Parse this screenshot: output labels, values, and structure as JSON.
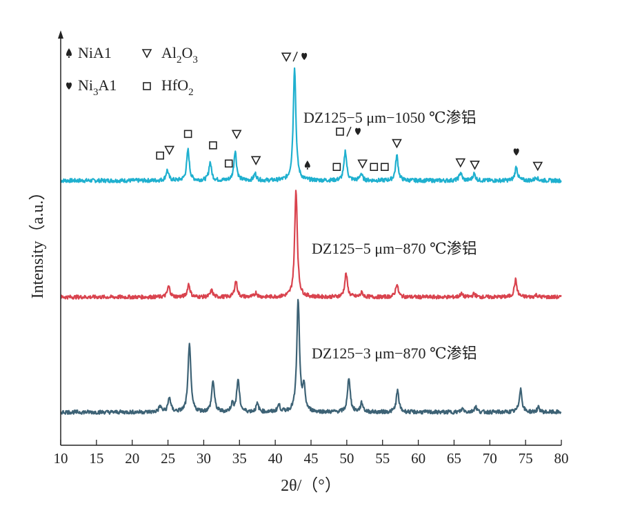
{
  "chart_data": {
    "type": "line",
    "xlabel": "2θ/（°）",
    "ylabel": "Intensity（a.u.）",
    "xlim": [
      10,
      80
    ],
    "x_ticks": [
      10,
      15,
      20,
      25,
      30,
      35,
      40,
      45,
      50,
      55,
      60,
      65,
      70,
      75,
      80
    ],
    "y_ticks": [],
    "grid": false,
    "legend_position": "top-left",
    "legend": [
      {
        "symbol": "spade",
        "text": "NiA1",
        "label": "NiA1"
      },
      {
        "symbol": "heart",
        "text": "Ni3A1",
        "label": "Ni",
        "sub": "3",
        "tail": "A1"
      },
      {
        "symbol": "triangle",
        "text": "Al2O3",
        "label": "Al",
        "sub1": "2",
        "mid": "O",
        "sub2": "3"
      },
      {
        "symbol": "square",
        "text": "HfO2",
        "label": "HfO",
        "sub": "2"
      }
    ],
    "series": [
      {
        "name": "DZ125−5 μm−1050 ℃渗铝",
        "color": "#1fb0cf",
        "baseline": 0.0,
        "peaks": [
          [
            24.9,
            0.09
          ],
          [
            27.8,
            0.27
          ],
          [
            30.9,
            0.16
          ],
          [
            34.4,
            0.26
          ],
          [
            37.2,
            0.06
          ],
          [
            42.7,
            1.0
          ],
          [
            49.8,
            0.26
          ],
          [
            52.0,
            0.06
          ],
          [
            57.0,
            0.22
          ],
          [
            65.9,
            0.07
          ],
          [
            67.8,
            0.06
          ],
          [
            73.7,
            0.12
          ],
          [
            76.5,
            0.03
          ]
        ],
        "markers": [
          {
            "x": 23.9,
            "h": 0.22,
            "symbols": [
              "square"
            ]
          },
          {
            "x": 25.2,
            "h": 0.27,
            "symbols": [
              "triangle"
            ]
          },
          {
            "x": 27.8,
            "h": 0.41,
            "symbols": [
              "square"
            ]
          },
          {
            "x": 31.3,
            "h": 0.31,
            "symbols": [
              "square"
            ]
          },
          {
            "x": 33.5,
            "h": 0.15,
            "symbols": [
              "square"
            ]
          },
          {
            "x": 34.6,
            "h": 0.41,
            "symbols": [
              "triangle"
            ]
          },
          {
            "x": 37.3,
            "h": 0.18,
            "symbols": [
              "triangle"
            ]
          },
          {
            "x": 42.8,
            "h": 1.09,
            "symbols": [
              "triangle",
              "slash",
              "heart"
            ]
          },
          {
            "x": 44.5,
            "h": 0.14,
            "symbols": [
              "spade"
            ]
          },
          {
            "x": 48.6,
            "h": 0.12,
            "symbols": [
              "square"
            ]
          },
          {
            "x": 50.3,
            "h": 0.43,
            "symbols": [
              "square",
              "slash",
              "heart"
            ]
          },
          {
            "x": 52.2,
            "h": 0.15,
            "symbols": [
              "triangle"
            ]
          },
          {
            "x": 53.8,
            "h": 0.12,
            "symbols": [
              "square"
            ]
          },
          {
            "x": 55.3,
            "h": 0.12,
            "symbols": [
              "square"
            ]
          },
          {
            "x": 57.0,
            "h": 0.33,
            "symbols": [
              "triangle"
            ]
          },
          {
            "x": 65.9,
            "h": 0.16,
            "symbols": [
              "triangle"
            ]
          },
          {
            "x": 67.9,
            "h": 0.14,
            "symbols": [
              "triangle"
            ]
          },
          {
            "x": 73.7,
            "h": 0.25,
            "symbols": [
              "heart"
            ]
          },
          {
            "x": 76.7,
            "h": 0.13,
            "symbols": [
              "triangle"
            ]
          }
        ]
      },
      {
        "name": "DZ125−5 μm−870 ℃渗铝",
        "color": "#d9434e",
        "baseline": 0.0,
        "peaks": [
          [
            25.1,
            0.1
          ],
          [
            27.9,
            0.12
          ],
          [
            31.1,
            0.06
          ],
          [
            34.5,
            0.15
          ],
          [
            37.3,
            0.04
          ],
          [
            42.9,
            1.0
          ],
          [
            49.9,
            0.22
          ],
          [
            52.1,
            0.04
          ],
          [
            57.0,
            0.12
          ],
          [
            66.0,
            0.03
          ],
          [
            67.8,
            0.03
          ],
          [
            73.6,
            0.16
          ],
          [
            76.5,
            0.02
          ]
        ],
        "markers": []
      },
      {
        "name": "DZ125−3 μm−870 ℃渗铝",
        "color": "#3d6275",
        "baseline": 0.0,
        "peaks": [
          [
            23.9,
            0.05
          ],
          [
            25.2,
            0.13
          ],
          [
            28.0,
            0.62
          ],
          [
            31.3,
            0.28
          ],
          [
            34.0,
            0.07
          ],
          [
            34.8,
            0.29
          ],
          [
            37.5,
            0.07
          ],
          [
            40.5,
            0.06
          ],
          [
            43.2,
            1.0
          ],
          [
            44.0,
            0.21
          ],
          [
            50.3,
            0.31
          ],
          [
            52.1,
            0.08
          ],
          [
            57.1,
            0.19
          ],
          [
            66.2,
            0.03
          ],
          [
            68.0,
            0.05
          ],
          [
            74.3,
            0.21
          ],
          [
            76.8,
            0.04
          ]
        ],
        "markers": []
      }
    ]
  }
}
